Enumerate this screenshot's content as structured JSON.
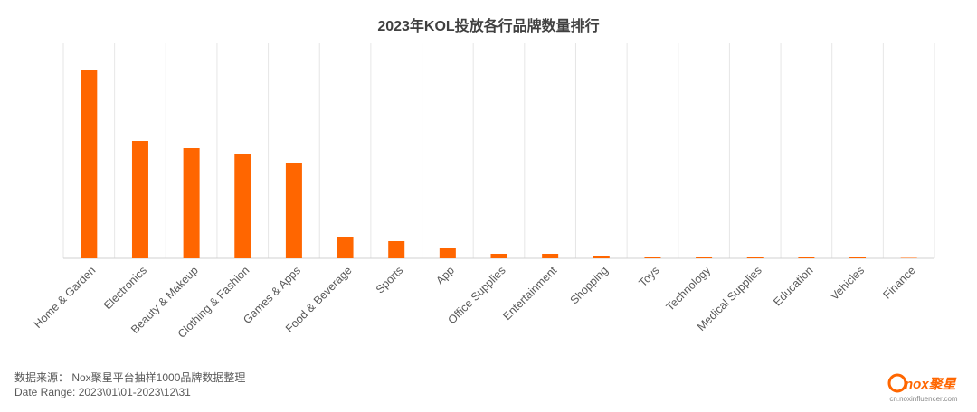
{
  "chart_data": {
    "type": "bar",
    "title": "2023年KOL投放各行品牌数量排行",
    "categories": [
      "Home & Garden",
      "Electronics",
      "Beauty & Makeup",
      "Clothing & Fashion",
      "Games & Apps",
      "Food & Beverage",
      "Sports",
      "App",
      "Office Supplies",
      "Entertainment",
      "Shopping",
      "Toys",
      "Technology",
      "Medical Supplies",
      "Education",
      "Vehicles",
      "Finance"
    ],
    "values": [
      208,
      130,
      122,
      116,
      106,
      24,
      19,
      12,
      5,
      5,
      3,
      2,
      2,
      2,
      2,
      1,
      0.5
    ],
    "color": "#ff6600",
    "ylim": [
      0,
      238
    ],
    "grid": true
  },
  "footer": {
    "source": "数据来源：  Nox聚星平台抽样1000品牌数据整理",
    "date_range": "Date Range:   2023\\01\\01-2023\\12\\31"
  },
  "logo": {
    "brand": "nox聚星",
    "url": "cn.noxinfluencer.com"
  }
}
